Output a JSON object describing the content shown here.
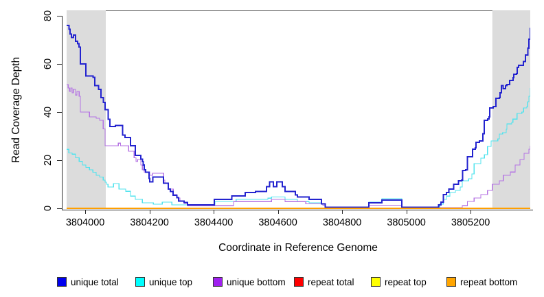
{
  "chart_data": {
    "type": "line",
    "title": "",
    "xlabel": "Coordinate in Reference Genome",
    "ylabel": "Read Coverage Depth",
    "xlim": [
      3803942,
      3805386
    ],
    "ylim": [
      0,
      82.3
    ],
    "x_ticks": [
      3804000,
      3804200,
      3804400,
      3804600,
      3804800,
      3805000,
      3805200
    ],
    "y_ticks": [
      0,
      20,
      40,
      60,
      80
    ],
    "grid": false,
    "legend_position": "bottom",
    "step": true,
    "shaded_regions": [
      {
        "x0": 3803942,
        "x1": 3804064,
        "color": "#dcdcdc"
      },
      {
        "x0": 3805268,
        "x1": 3805386,
        "color": "#dcdcdc"
      }
    ],
    "series": [
      {
        "name": "unique top",
        "color": "#4fe3ee",
        "width": 1.2,
        "points": [
          [
            3803942,
            24.5
          ],
          [
            3803949,
            23
          ],
          [
            3803959,
            22.5
          ],
          [
            3803970,
            21
          ],
          [
            3803981,
            19.5
          ],
          [
            3803991,
            18
          ],
          [
            3804002,
            17
          ],
          [
            3804013,
            16
          ],
          [
            3804024,
            15
          ],
          [
            3804034,
            13.7
          ],
          [
            3804045,
            13
          ],
          [
            3804056,
            11.7
          ],
          [
            3804062,
            10.9
          ],
          [
            3804066,
            10
          ],
          [
            3804071,
            8.9
          ],
          [
            3804088,
            10.3
          ],
          [
            3804105,
            8
          ],
          [
            3804126,
            7.1
          ],
          [
            3804141,
            5.1
          ],
          [
            3804156,
            3.7
          ],
          [
            3804178,
            2.3
          ],
          [
            3804212,
            1.7
          ],
          [
            3804240,
            2.6
          ],
          [
            3804270,
            1.4
          ],
          [
            3804404,
            2.9
          ],
          [
            3804470,
            3.7
          ],
          [
            3804569,
            4.2
          ],
          [
            3804580,
            4.7
          ],
          [
            3804622,
            3.7
          ],
          [
            3804661,
            2.8
          ],
          [
            3804697,
            2.3
          ],
          [
            3804736,
            1.9
          ],
          [
            3804747,
            0.5
          ],
          [
            3804883,
            2.6
          ],
          [
            3804924,
            4
          ],
          [
            3804986,
            0.6
          ],
          [
            3805104,
            1.7
          ],
          [
            3805115,
            3.7
          ],
          [
            3805125,
            5.1
          ],
          [
            3805136,
            6.6
          ],
          [
            3805153,
            7.4
          ],
          [
            3805168,
            8.9
          ],
          [
            3805174,
            11.4
          ],
          [
            3805194,
            12.3
          ],
          [
            3805204,
            14.3
          ],
          [
            3805211,
            18.6
          ],
          [
            3805232,
            20.9
          ],
          [
            3805243,
            22.3
          ],
          [
            3805253,
            25.7
          ],
          [
            3805264,
            28
          ],
          [
            3805285,
            28.9
          ],
          [
            3805290,
            30.9
          ],
          [
            3805300,
            31.4
          ],
          [
            3805311,
            32.9
          ],
          [
            3805313,
            35.1
          ],
          [
            3805328,
            35.7
          ],
          [
            3805332,
            37.1
          ],
          [
            3805345,
            39.4
          ],
          [
            3805360,
            40
          ],
          [
            3805365,
            41.7
          ],
          [
            3805375,
            42.3
          ],
          [
            3805378,
            44.3
          ],
          [
            3805382,
            46.6
          ],
          [
            3805386,
            50
          ]
        ]
      },
      {
        "name": "unique bottom",
        "color": "#b573e3",
        "width": 1.2,
        "points": [
          [
            3803942,
            51.4
          ],
          [
            3803947,
            50
          ],
          [
            3803951,
            48.6
          ],
          [
            3803955,
            50
          ],
          [
            3803959,
            48
          ],
          [
            3803963,
            49.4
          ],
          [
            3803970,
            47.1
          ],
          [
            3803974,
            48.6
          ],
          [
            3803981,
            46.6
          ],
          [
            3803985,
            40
          ],
          [
            3804013,
            38
          ],
          [
            3804034,
            37.4
          ],
          [
            3804045,
            36.6
          ],
          [
            3804056,
            33
          ],
          [
            3804062,
            26
          ],
          [
            3804103,
            27.1
          ],
          [
            3804110,
            26
          ],
          [
            3804135,
            23.7
          ],
          [
            3804152,
            21
          ],
          [
            3804158,
            19.4
          ],
          [
            3804163,
            20.3
          ],
          [
            3804173,
            18
          ],
          [
            3804178,
            16
          ],
          [
            3804184,
            15.1
          ],
          [
            3804201,
            13.7
          ],
          [
            3804210,
            14.6
          ],
          [
            3804244,
            11.7
          ],
          [
            3804248,
            10.3
          ],
          [
            3804259,
            8
          ],
          [
            3804274,
            5.7
          ],
          [
            3804285,
            4.3
          ],
          [
            3804295,
            3.1
          ],
          [
            3804308,
            2
          ],
          [
            3804319,
            1.1
          ],
          [
            3804462,
            2.8
          ],
          [
            3804580,
            3.7
          ],
          [
            3804622,
            2.8
          ],
          [
            3804687,
            1.9
          ],
          [
            3804740,
            1.3
          ],
          [
            3804747,
            0.3
          ],
          [
            3804883,
            1.3
          ],
          [
            3804986,
            0.3
          ],
          [
            3805174,
            1.1
          ],
          [
            3805190,
            2.9
          ],
          [
            3805211,
            4.3
          ],
          [
            3805232,
            5.7
          ],
          [
            3805253,
            7.4
          ],
          [
            3805268,
            10
          ],
          [
            3805290,
            11.4
          ],
          [
            3805302,
            13.7
          ],
          [
            3805324,
            15.1
          ],
          [
            3805339,
            18
          ],
          [
            3805354,
            20.3
          ],
          [
            3805367,
            22.9
          ],
          [
            3805382,
            24.6
          ],
          [
            3805386,
            26
          ]
        ]
      },
      {
        "name": "unique total",
        "color": "#2323cf",
        "width": 2,
        "points": [
          [
            3803942,
            76
          ],
          [
            3803949,
            74.5
          ],
          [
            3803953,
            72.5
          ],
          [
            3803957,
            71
          ],
          [
            3803963,
            72
          ],
          [
            3803970,
            69.5
          ],
          [
            3803976,
            68.5
          ],
          [
            3803981,
            67
          ],
          [
            3803985,
            60
          ],
          [
            3804002,
            55
          ],
          [
            3804024,
            54.5
          ],
          [
            3804030,
            51
          ],
          [
            3804041,
            49.5
          ],
          [
            3804049,
            46
          ],
          [
            3804056,
            44
          ],
          [
            3804062,
            41
          ],
          [
            3804071,
            37
          ],
          [
            3804077,
            34
          ],
          [
            3804094,
            34.5
          ],
          [
            3804116,
            30.5
          ],
          [
            3804124,
            29.5
          ],
          [
            3804141,
            26
          ],
          [
            3804156,
            22
          ],
          [
            3804173,
            20.5
          ],
          [
            3804178,
            19.5
          ],
          [
            3804180,
            18
          ],
          [
            3804184,
            16
          ],
          [
            3804188,
            15
          ],
          [
            3804199,
            12.5
          ],
          [
            3804201,
            11
          ],
          [
            3804210,
            13
          ],
          [
            3804244,
            10.5
          ],
          [
            3804259,
            8
          ],
          [
            3804265,
            7
          ],
          [
            3804274,
            5.5
          ],
          [
            3804285,
            4.5
          ],
          [
            3804291,
            3
          ],
          [
            3804308,
            2.5
          ],
          [
            3804319,
            1.4
          ],
          [
            3804402,
            3.7
          ],
          [
            3804456,
            5.1
          ],
          [
            3804498,
            6.6
          ],
          [
            3804530,
            7
          ],
          [
            3804565,
            9
          ],
          [
            3804574,
            11
          ],
          [
            3804586,
            9
          ],
          [
            3804597,
            11
          ],
          [
            3804614,
            9
          ],
          [
            3804622,
            7
          ],
          [
            3804654,
            5.6
          ],
          [
            3804661,
            4.7
          ],
          [
            3804697,
            3.7
          ],
          [
            3804736,
            1.9
          ],
          [
            3804747,
            0.4
          ],
          [
            3804883,
            2.3
          ],
          [
            3804924,
            3.4
          ],
          [
            3804986,
            0.4
          ],
          [
            3805100,
            1.4
          ],
          [
            3805108,
            2.6
          ],
          [
            3805115,
            5.7
          ],
          [
            3805125,
            6.6
          ],
          [
            3805132,
            8
          ],
          [
            3805147,
            10
          ],
          [
            3805162,
            11.4
          ],
          [
            3805172,
            11.7
          ],
          [
            3805175,
            15.7
          ],
          [
            3805185,
            16
          ],
          [
            3805190,
            21.4
          ],
          [
            3805206,
            24.6
          ],
          [
            3805215,
            25.1
          ],
          [
            3805217,
            27.4
          ],
          [
            3805228,
            28
          ],
          [
            3805238,
            31
          ],
          [
            3805243,
            36.6
          ],
          [
            3805253,
            37.1
          ],
          [
            3805258,
            38
          ],
          [
            3805260,
            41.7
          ],
          [
            3805270,
            42.3
          ],
          [
            3805279,
            45.7
          ],
          [
            3805290,
            46
          ],
          [
            3805292,
            48
          ],
          [
            3805296,
            51
          ],
          [
            3805302,
            49.7
          ],
          [
            3805309,
            51
          ],
          [
            3805313,
            51.4
          ],
          [
            3805322,
            53.1
          ],
          [
            3805332,
            54.3
          ],
          [
            3805335,
            55.7
          ],
          [
            3805343,
            56
          ],
          [
            3805345,
            58.6
          ],
          [
            3805350,
            59.4
          ],
          [
            3805365,
            61
          ],
          [
            3805371,
            63.7
          ],
          [
            3805378,
            66.6
          ],
          [
            3805382,
            70.3
          ],
          [
            3805386,
            75
          ]
        ]
      },
      {
        "name": "repeat total",
        "color": "#e00000",
        "width": 1.2,
        "points": [
          [
            3803942,
            0
          ],
          [
            3805386,
            0
          ]
        ]
      },
      {
        "name": "repeat top",
        "color": "#ffff00",
        "width": 1.2,
        "points": [
          [
            3803942,
            0
          ],
          [
            3805386,
            0
          ]
        ]
      },
      {
        "name": "repeat bottom",
        "color": "#ff9f00",
        "width": 1.8,
        "points": [
          [
            3803942,
            0
          ],
          [
            3805386,
            0
          ]
        ]
      }
    ],
    "legend": [
      {
        "label": "unique total",
        "fill": "#0000ee"
      },
      {
        "label": "unique top",
        "fill": "#00ffff"
      },
      {
        "label": "unique bottom",
        "fill": "#a020f0"
      },
      {
        "label": "repeat total",
        "fill": "#ff0000"
      },
      {
        "label": "repeat top",
        "fill": "#ffff00"
      },
      {
        "label": "repeat bottom",
        "fill": "#ffa500"
      }
    ]
  }
}
